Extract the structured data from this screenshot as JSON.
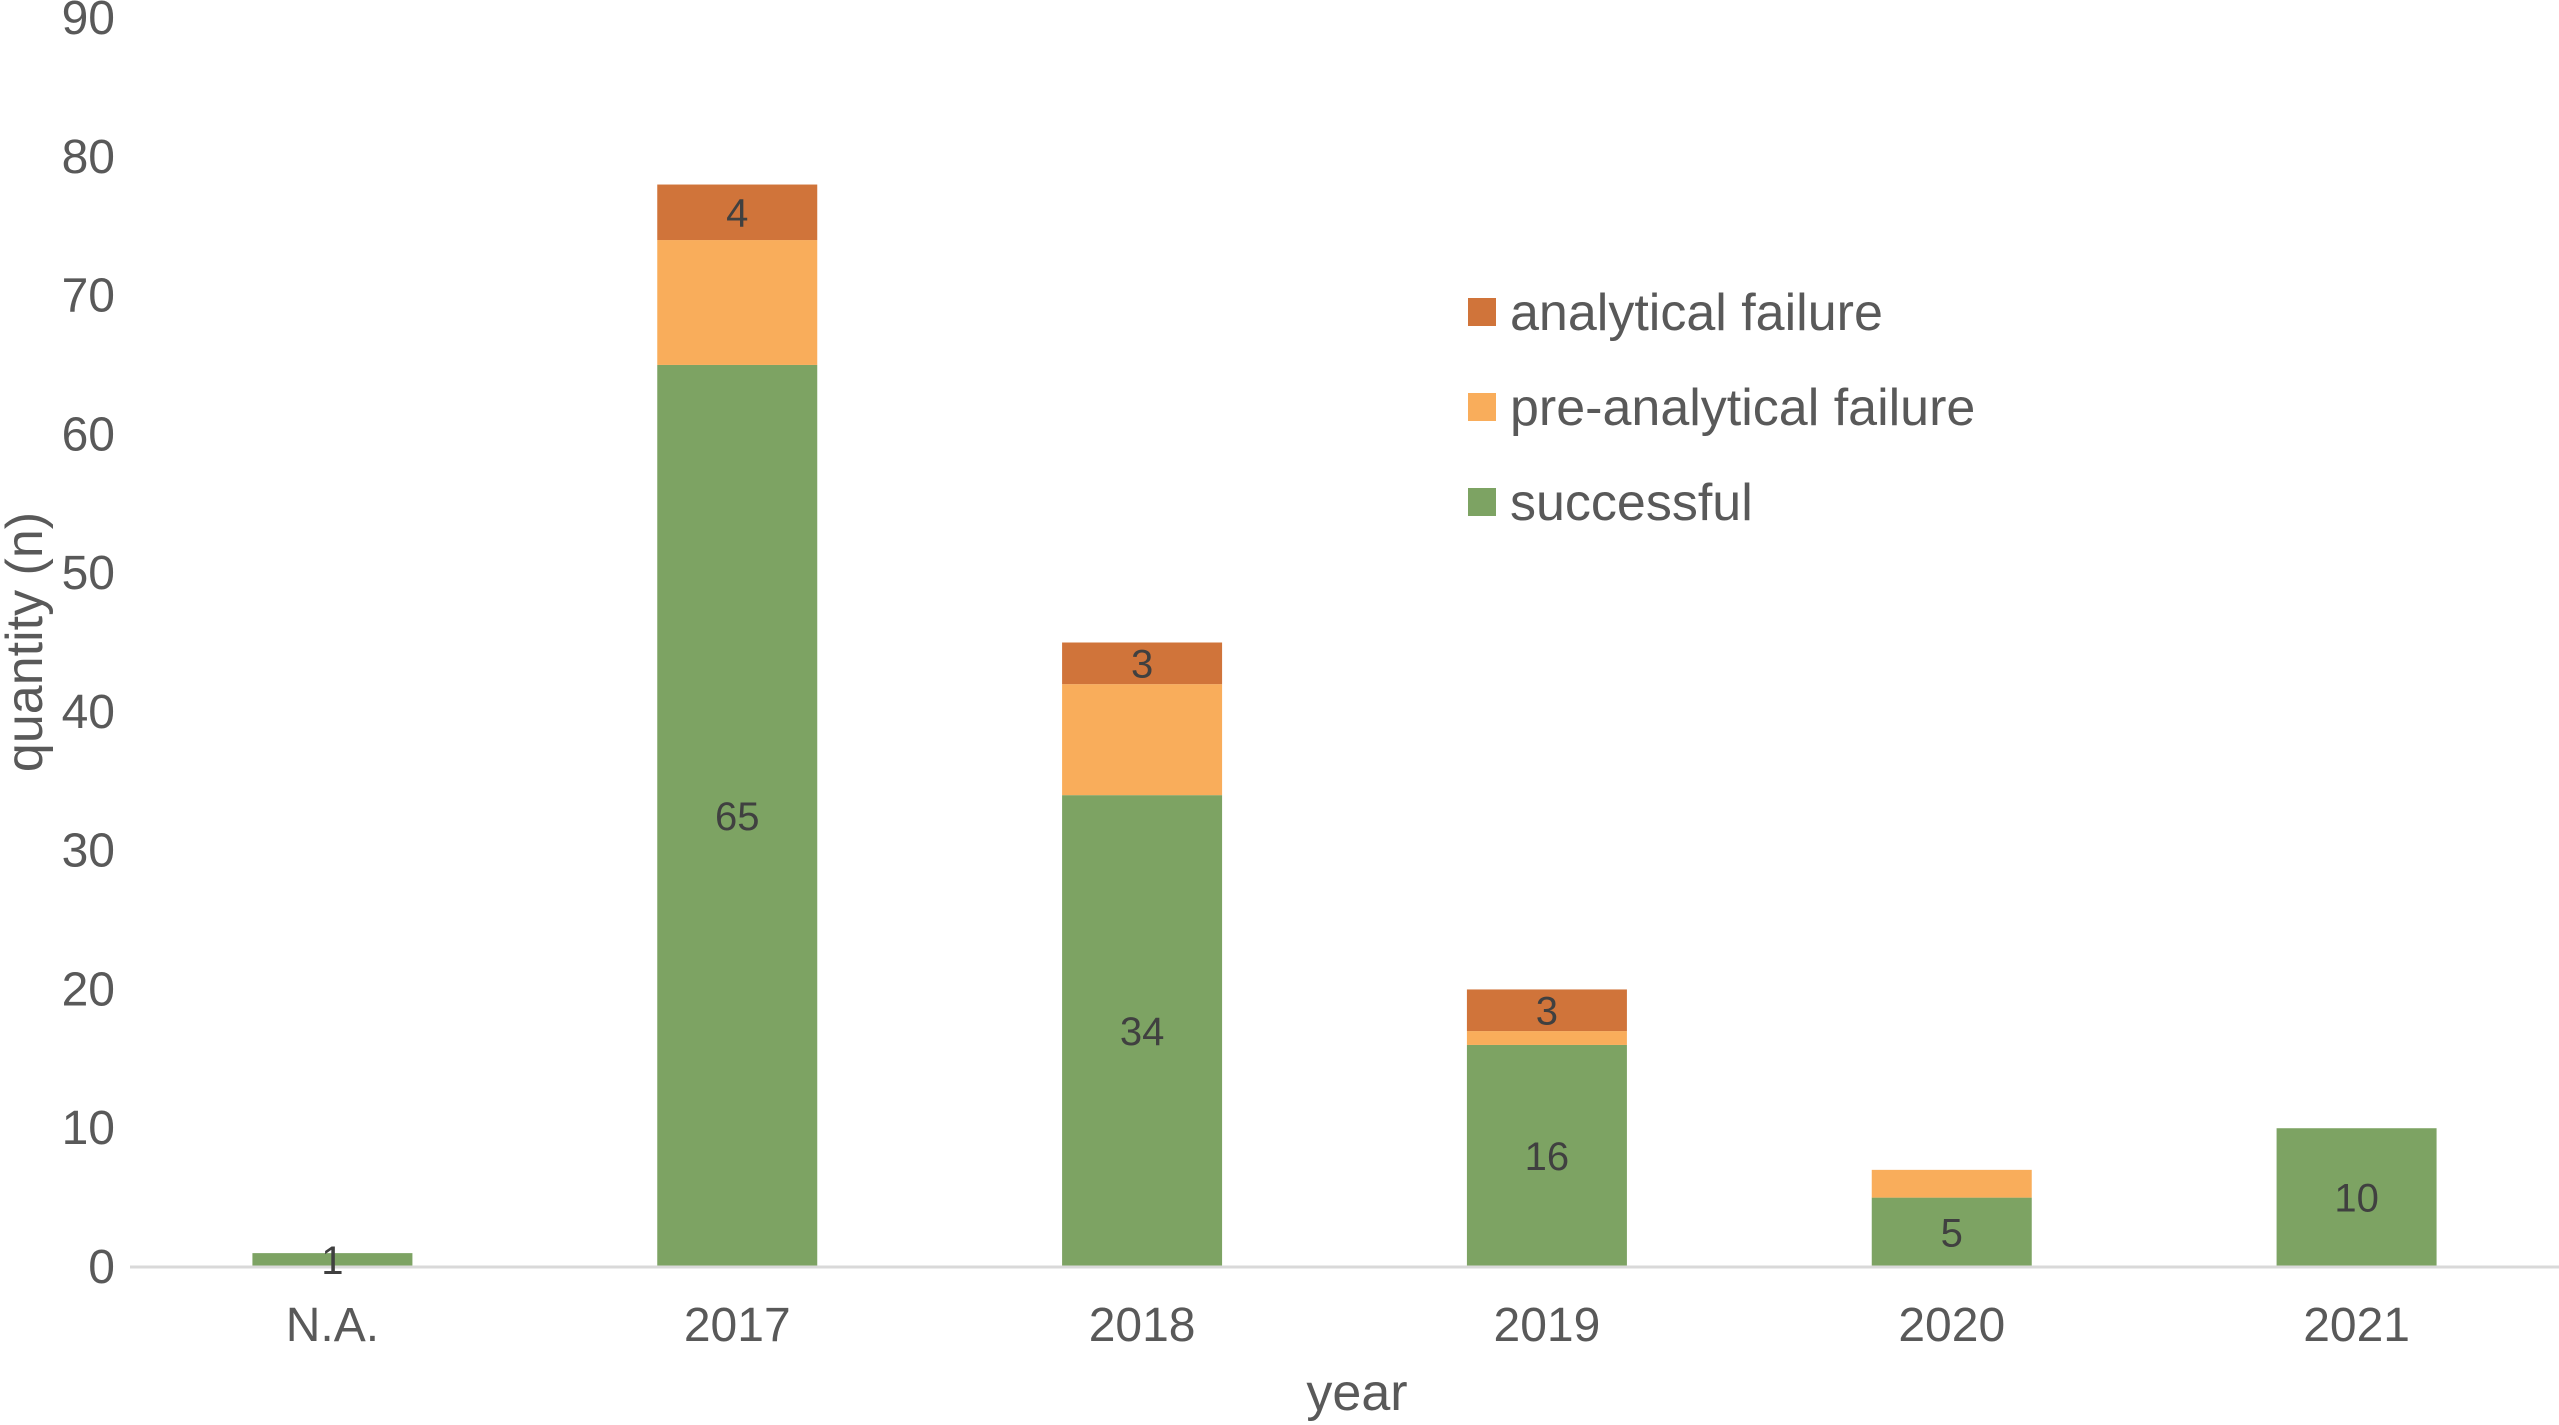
{
  "chart_data": {
    "type": "bar",
    "stacked": true,
    "categories": [
      "N.A.",
      "2017",
      "2018",
      "2019",
      "2020",
      "2021"
    ],
    "series": [
      {
        "name": "successful",
        "color": "#7da363",
        "values": [
          1,
          65,
          34,
          16,
          5,
          10
        ],
        "labels": [
          "1",
          "65",
          "34",
          "16",
          "5",
          "10"
        ]
      },
      {
        "name": "pre-analytical failure",
        "color": "#f9ad5b",
        "values": [
          0,
          9,
          8,
          1,
          2,
          0
        ],
        "labels": [
          "",
          "",
          "",
          "",
          "",
          ""
        ]
      },
      {
        "name": "analytical failure",
        "color": "#d0743a",
        "values": [
          0,
          4,
          3,
          3,
          0,
          0
        ],
        "labels": [
          "",
          "4",
          "3",
          "3",
          "",
          ""
        ]
      }
    ],
    "title": "",
    "xlabel": "year",
    "ylabel": "quantity (n)",
    "ylim": [
      0,
      90
    ],
    "yticks": [
      0,
      10,
      20,
      30,
      40,
      50,
      60,
      70,
      80,
      90
    ],
    "grid": false,
    "legend_position": "top-right"
  }
}
